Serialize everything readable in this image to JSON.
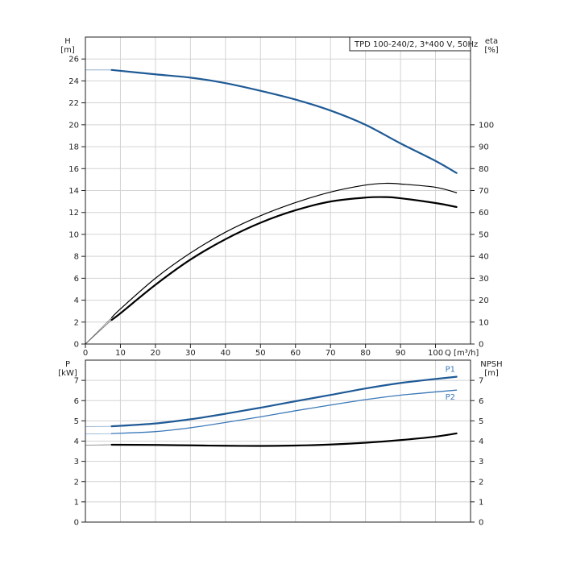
{
  "title": "TPD 100-240/2, 3*400 V, 50Hz",
  "colors": {
    "grid": "#d3d3d3",
    "axis": "#222222",
    "head": "#1f5a96",
    "p1": "#1f5a96",
    "p2": "#3a78b8",
    "efficiency": "#000000",
    "label_blue": "#3a78b8"
  },
  "chart_data": [
    {
      "type": "line",
      "name": "head-and-efficiency",
      "xlabel": "Q [m³/h]",
      "ylabel_left": [
        "H",
        "[m]"
      ],
      "ylabel_right": [
        "eta",
        "[%]"
      ],
      "xlim": [
        0,
        110
      ],
      "ylim_left": [
        0,
        28
      ],
      "ylim_right": [
        0,
        140
      ],
      "x_ticks": [
        0,
        10,
        20,
        30,
        40,
        50,
        60,
        70,
        80,
        90,
        100
      ],
      "y_left_ticks": [
        0,
        2,
        4,
        6,
        8,
        10,
        12,
        14,
        16,
        18,
        20,
        22,
        24,
        26
      ],
      "y_right_ticks": [
        0,
        10,
        20,
        30,
        40,
        50,
        60,
        70,
        80,
        90,
        100
      ],
      "grid": true,
      "series": [
        {
          "axis": "left",
          "style": "head",
          "x": [
            0,
            7.5,
            20,
            30,
            40,
            50,
            60,
            70,
            80,
            90,
            100,
            106
          ],
          "y": [
            25,
            25,
            24.6,
            24.3,
            23.8,
            23.1,
            22.3,
            21.3,
            20.0,
            18.3,
            16.7,
            15.6
          ]
        },
        {
          "axis": "right",
          "style": "eta-thin",
          "x": [
            0,
            7.5,
            10,
            20,
            30,
            40,
            50,
            60,
            70,
            80,
            86,
            90,
            100,
            106
          ],
          "y": [
            0,
            12,
            16,
            30,
            41.5,
            51,
            58.5,
            64.5,
            69.3,
            72.5,
            73.3,
            73.0,
            71.5,
            69
          ]
        },
        {
          "axis": "right",
          "style": "eta-thick",
          "x": [
            0,
            7.5,
            10,
            20,
            30,
            40,
            50,
            60,
            70,
            80,
            86,
            90,
            100,
            106
          ],
          "y": [
            0,
            11,
            14,
            27,
            38.5,
            47.8,
            55.3,
            61.0,
            65.0,
            66.8,
            67.0,
            66.5,
            64.3,
            62.5
          ]
        }
      ]
    },
    {
      "type": "line",
      "name": "power-and-npsh",
      "xlabel": "",
      "ylabel_left": [
        "P",
        "[kW]"
      ],
      "ylabel_right": [
        "NPSH",
        "[m]"
      ],
      "xlim": [
        0,
        110
      ],
      "ylim_left": [
        0,
        8
      ],
      "ylim_right": [
        0,
        8
      ],
      "y_left_ticks": [
        0,
        1,
        2,
        3,
        4,
        5,
        6,
        7
      ],
      "y_right_ticks": [
        0,
        1,
        2,
        3,
        4,
        5,
        6,
        7
      ],
      "grid": true,
      "series": [
        {
          "name": "P1",
          "axis": "left",
          "style": "p1",
          "x": [
            0,
            7.5,
            20,
            30,
            40,
            50,
            60,
            70,
            80,
            90,
            100,
            106
          ],
          "y": [
            4.72,
            4.73,
            4.87,
            5.08,
            5.35,
            5.65,
            5.97,
            6.28,
            6.6,
            6.87,
            7.07,
            7.18
          ]
        },
        {
          "name": "P2",
          "axis": "left",
          "style": "p2",
          "x": [
            0,
            7.5,
            20,
            30,
            40,
            50,
            60,
            70,
            80,
            90,
            100,
            106
          ],
          "y": [
            4.35,
            4.37,
            4.47,
            4.66,
            4.92,
            5.2,
            5.5,
            5.78,
            6.05,
            6.27,
            6.43,
            6.52
          ]
        },
        {
          "axis": "right",
          "style": "npsh",
          "x": [
            0,
            7.5,
            20,
            30,
            40,
            50,
            60,
            70,
            80,
            90,
            100,
            106
          ],
          "y": [
            3.8,
            3.82,
            3.81,
            3.79,
            3.77,
            3.76,
            3.78,
            3.83,
            3.92,
            4.05,
            4.22,
            4.38
          ]
        }
      ]
    }
  ]
}
